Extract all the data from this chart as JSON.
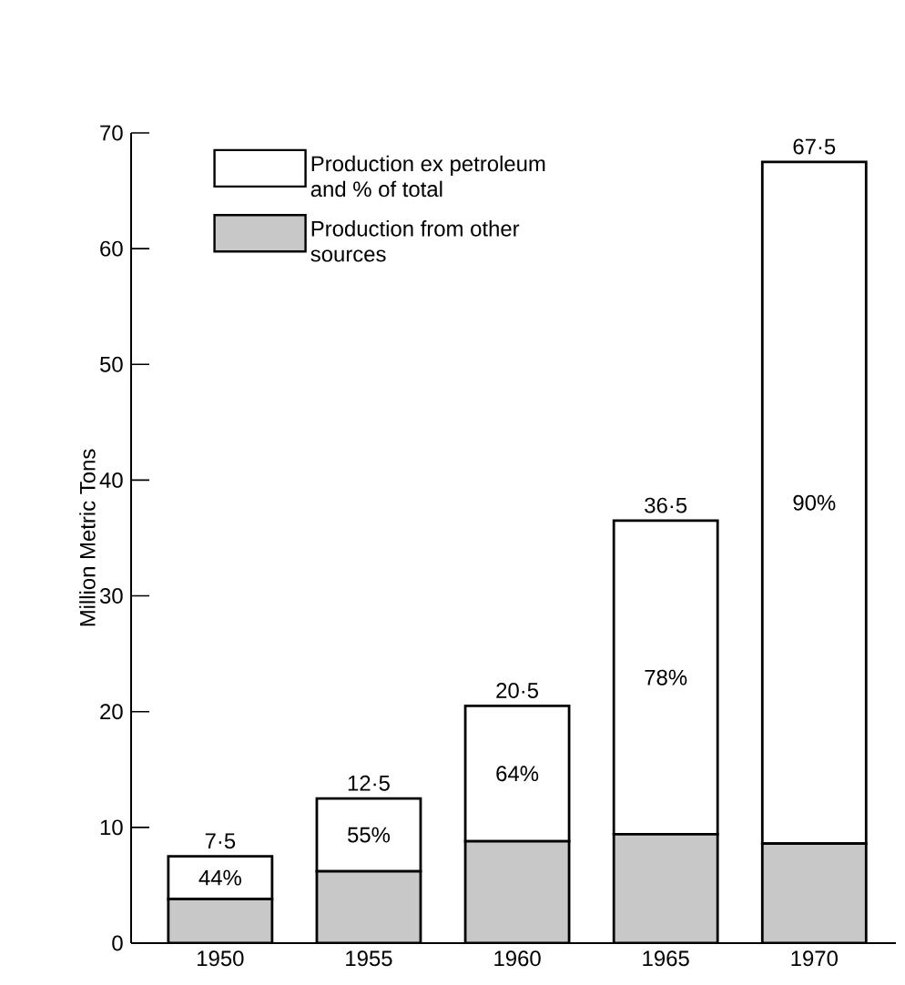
{
  "chart_data": {
    "type": "bar",
    "stacked": true,
    "categories": [
      "1950",
      "1955",
      "1960",
      "1965",
      "1970"
    ],
    "series": [
      {
        "name": "Production from other sources",
        "color": "#c8c8c8",
        "values": [
          3.8,
          6.2,
          8.8,
          9.4,
          8.6
        ]
      },
      {
        "name": "Production ex petroleum and % of total",
        "color": "#ffffff",
        "values": [
          3.7,
          6.3,
          11.7,
          27.1,
          58.9
        ]
      }
    ],
    "annotations": [
      "44%",
      "55%",
      "64%",
      "78%",
      "90%"
    ],
    "totals": [
      "7·5",
      "12·5",
      "20·5",
      "36·5",
      "67·5"
    ],
    "ylabel": "Million Metric Tons",
    "ylim": [
      0,
      70
    ],
    "yticks": [
      0,
      10,
      20,
      30,
      40,
      50,
      60,
      70
    ],
    "legend": "top left"
  }
}
